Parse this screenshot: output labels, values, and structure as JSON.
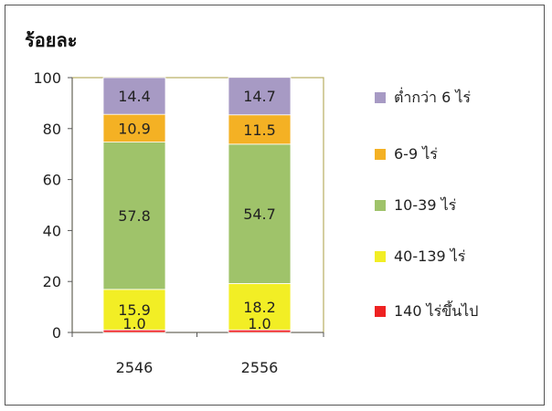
{
  "chart_data": {
    "type": "bar",
    "stacked": true,
    "ylabel": "ร้อยละ",
    "xlabel": "",
    "ylim": [
      0,
      100
    ],
    "yticks": [
      0,
      20,
      40,
      60,
      80,
      100
    ],
    "categories": [
      "2546",
      "2556"
    ],
    "series": [
      {
        "name": "140 ไร่ขึ้นไป",
        "color": "#ee2222",
        "values": [
          1.0,
          1.0
        ],
        "labels": [
          "1.0",
          "1.0"
        ]
      },
      {
        "name": "40-139 ไร่",
        "color": "#f2ee25",
        "values": [
          15.9,
          18.2
        ],
        "labels": [
          "15.9",
          "18.2"
        ]
      },
      {
        "name": "10-39 ไร่",
        "color": "#9fc36a",
        "values": [
          57.8,
          54.7
        ],
        "labels": [
          "57.8",
          "54.7"
        ]
      },
      {
        "name": "6-9 ไร่",
        "color": "#f4b124",
        "values": [
          10.9,
          11.5
        ],
        "labels": [
          "10.9",
          "11.5"
        ]
      },
      {
        "name": "ต่ำกว่า 6 ไร่",
        "color": "#a79ac4",
        "values": [
          14.4,
          14.7
        ],
        "labels": [
          "14.4",
          "14.7"
        ]
      }
    ],
    "legend_position": "right",
    "legend_order": [
      "ต่ำกว่า 6 ไร่",
      "6-9 ไร่",
      "10-39 ไร่",
      "40-139 ไร่",
      "140 ไร่ขึ้นไป"
    ],
    "grid": false
  }
}
